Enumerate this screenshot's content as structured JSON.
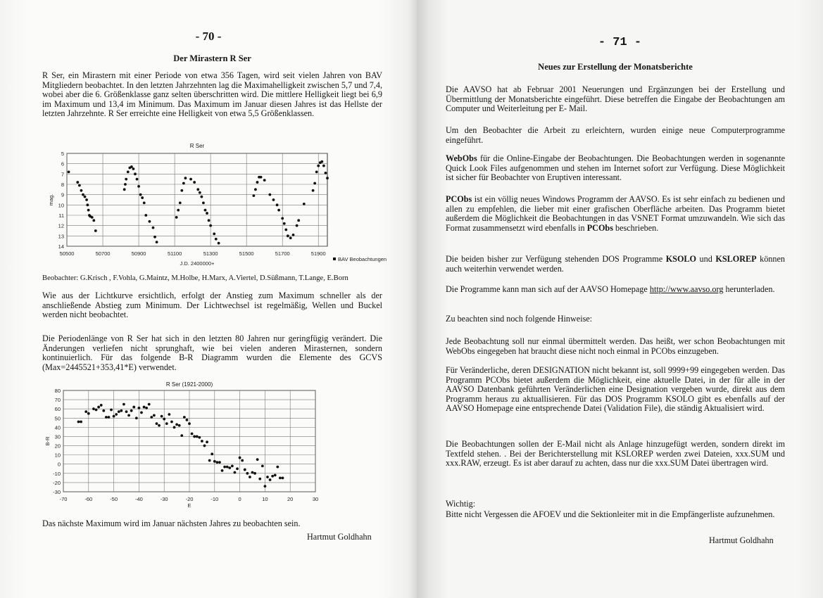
{
  "left": {
    "page_number": "- 70 -",
    "title": "Der Mirastern R Ser",
    "p1": "R Ser, ein Mirastern mit einer Periode von etwa 356 Tagen, wird seit vielen Jahren von BAV Mitgliedern beobachtet. In den letzten Jahrzehnten lag die Maximahelligkeit zwischen 5,7 und 7,4, wobei aber die 6. Größenklasse ganz selten überschritten wird. Die mittlere Helligkeit liegt bei 6,9 im Maximum und 13,4 im Minimum. Das  Maximum im Januar diesen Jahres ist das Hellste der letzten Jahrzehnte. R Ser erreichte eine Helligkeit von etwa 5,5 Größenklassen.",
    "observers": "Beobachter: G.Krisch , F.Vohla, G.Maintz, M.Holbe, H.Marx, A.Viertel, D.Süßmann, T.Lange, E.Born",
    "p2": "Wie aus der Lichtkurve ersichtlich, erfolgt der Anstieg zum Maximum schneller als der anschließende Abstieg zum Minimum. Der Lichtwechsel ist regelmäßig, Wellen und Buckel werden nicht beobachtet.",
    "p3": "Die Periodenlänge von R Ser hat sich in den letzten 80 Jahren nur geringfügig verändert. Die Änderungen verliefen nicht sprunghaft, wie bei vielen anderen Mirasternen, sondern kontinuierlich. Für das folgende B-R Diagramm wurden die Elemente des GCVS (Max=2445521+353,41*E) verwendet.",
    "p4": "Das nächste Maximum wird im Januar nächsten Jahres zu beobachten sein.",
    "author": "Hartmut Goldhahn"
  },
  "right": {
    "page_number": "- 71 -",
    "title": "Neues zur Erstellung der Monatsberichte",
    "p1": "Die AAVSO hat ab Februar 2001 Neuerungen und Ergänzungen bei der Erstellung und Übermittlung der Monatsberichte eingeführt. Diese betreffen die Eingabe der Beobachtungen am Computer und Weiterleitung per E- Mail.",
    "p2": "Um den Beobachter die Arbeit zu erleichtern, wurden einige neue Computerprogramme eingeführt.",
    "p3": [
      "WebObs",
      "  für die Online-Eingabe der Beobachtungen. Die Beobachtungen werden in sogenannte Quick Look Files aufgenommen und stehen im Internet sofort zur Verfügung. Diese Möglichkeit ist sicher für Beobachter von Eruptiven interessant."
    ],
    "p4": [
      "PCObs",
      " ist ein völlig neues Windows Programm der AAVSO. Es ist sehr einfach zu bedienen und allen zu empfehlen, die lieber mit einer grafischen Oberfläche arbeiten. Das Programm bietet außerdem die Möglichkeit die Beobachtungen in das VSNET Format umzuwandeln. Wie sich das Format zusammensetzt wird ebenfalls in ",
      "PCObs",
      " beschrieben."
    ],
    "p5": [
      "Die beiden bisher zur Verfügung stehenden DOS Programme ",
      "KSOLO",
      " und ",
      "KSLOREP",
      " können auch weiterhin verwendet werden."
    ],
    "p6": [
      "Die Programme kann man sich auf der AAVSO Homepage ",
      "http://www.aavso.org",
      " herunterladen."
    ],
    "p7": "Zu beachten sind noch folgende Hinweise:",
    "p8": "Jede Beobachtung soll nur einmal übermittelt werden. Das heißt, wer schon Beobachtungen mit WebObs eingegeben hat braucht diese nicht noch einmal in PCObs einzugeben.",
    "p9": "Für Veränderliche, deren DESIGNATION nicht bekannt ist, soll 9999+99 eingegeben werden. Das Programm PCObs bietet außerdem die Möglichkeit, eine aktuelle Datei, in der für alle in der AAVSO Datenbank geführten Veränderlichen eine Designation vergeben wurde, direkt aus dem Programm heraus zu aktuallisieren. Für das DOS Programm KSOLO gibt es ebenfalls auf der AAVSO Homepage eine entsprechende Datei (Validation File), die ständig Aktualisiert wird.",
    "p10": "Die Beobachtungen sollen der E-Mail nicht als Anlage hinzugefügt werden, sondern direkt im Textfeld stehen. . Bei der Berichterstellung mit KSLOREP werden zwei Dateien,  xxx.SUM und  xxx.RAW, erzeugt. Es ist aber darauf zu achten, dass nur die  xxx.SUM Datei übertragen wird.",
    "p11_label": "Wichtig:",
    "p11": "Bitte nicht Vergessen die AFOEV und die Sektionleiter mit in die Empfängerliste aufzunehmen.",
    "author": "Hartmut Goldhahn"
  },
  "chart_data": [
    {
      "type": "scatter",
      "title": "R Ser",
      "xlabel": "J.D. 2400000+",
      "ylabel": "mag.",
      "xlim": [
        50500,
        51950
      ],
      "ylim": [
        14,
        5
      ],
      "y_inverted": true,
      "grid": true,
      "x_ticks": [
        50500,
        50700,
        50900,
        51100,
        51300,
        51500,
        51700,
        51900
      ],
      "y_ticks": [
        5,
        6,
        7,
        8,
        9,
        10,
        11,
        12,
        13,
        14
      ],
      "legend": "bottom-right",
      "series": [
        {
          "name": "BAV Beobachtungen",
          "x": [
            50510,
            50560,
            50570,
            50580,
            50590,
            50600,
            50610,
            50615,
            50620,
            50625,
            50630,
            50640,
            50650,
            50660,
            50820,
            50825,
            50830,
            50840,
            50850,
            50860,
            50870,
            50880,
            50890,
            50900,
            50910,
            50920,
            50930,
            50940,
            50960,
            50980,
            50990,
            51000,
            51110,
            51120,
            51130,
            51140,
            51150,
            51160,
            51190,
            51210,
            51230,
            51240,
            51250,
            51260,
            51270,
            51280,
            51290,
            51300,
            51320,
            51330,
            51345,
            51540,
            51550,
            51560,
            51570,
            51580,
            51600,
            51630,
            51650,
            51670,
            51680,
            51700,
            51710,
            51720,
            51730,
            51745,
            51760,
            51780,
            51790,
            51820,
            51870,
            51880,
            51890,
            51900,
            51910,
            51920,
            51930,
            51940,
            51950
          ],
          "y": [
            6.8,
            7.8,
            8.1,
            8.6,
            9.0,
            9.2,
            9.5,
            10.0,
            10.5,
            11.0,
            11.1,
            11.2,
            11.5,
            12.5,
            8.5,
            8.0,
            7.5,
            6.8,
            6.4,
            6.3,
            6.5,
            7.0,
            7.5,
            8.2,
            9.0,
            9.3,
            9.8,
            11.0,
            11.6,
            12.2,
            13.1,
            13.6,
            11.2,
            10.5,
            9.8,
            8.6,
            7.9,
            7.4,
            7.5,
            7.8,
            8.5,
            8.8,
            9.2,
            9.8,
            10.5,
            10.8,
            11.5,
            12.0,
            12.8,
            13.3,
            13.7,
            9.1,
            8.5,
            7.8,
            7.3,
            7.3,
            7.6,
            9.0,
            9.5,
            10.0,
            10.5,
            11.3,
            11.8,
            12.4,
            13.0,
            13.2,
            12.9,
            12.0,
            11.5,
            9.9,
            8.6,
            7.9,
            6.8,
            6.2,
            5.9,
            5.8,
            6.2,
            6.9,
            7.4
          ]
        }
      ]
    },
    {
      "type": "scatter",
      "title": "R Ser (1921-2000)",
      "xlabel": "E",
      "ylabel": "B-R",
      "xlim": [
        -70,
        30
      ],
      "ylim": [
        -30,
        80
      ],
      "grid": true,
      "x_ticks": [
        -70,
        -60,
        -50,
        -40,
        -30,
        -20,
        -10,
        0,
        10,
        20,
        30
      ],
      "y_ticks": [
        80,
        70,
        60,
        50,
        40,
        30,
        20,
        10,
        0,
        -10,
        -20,
        -30
      ],
      "series": [
        {
          "x": [
            -64,
            -63,
            -61,
            -60,
            -58,
            -57,
            -56,
            -55,
            -54,
            -53,
            -52,
            -51,
            -50,
            -49,
            -48,
            -47,
            -46,
            -45,
            -44,
            -43,
            -42,
            -41,
            -40,
            -39,
            -38,
            -37,
            -36,
            -35,
            -34,
            -33,
            -32,
            -31,
            -30,
            -29,
            -28,
            -27,
            -26,
            -25,
            -24,
            -23,
            -22,
            -21,
            -20,
            -19,
            -18,
            -17,
            -16,
            -15,
            -14,
            -13,
            -12,
            -11,
            -10,
            -9,
            -8,
            -7,
            -6,
            -5,
            -4,
            -3,
            -2,
            -1,
            0,
            1,
            2,
            3,
            4,
            5,
            6,
            7,
            8,
            9,
            10,
            11,
            12,
            13,
            14,
            15,
            16,
            17
          ],
          "y": [
            46,
            46,
            57,
            55,
            60,
            59,
            62,
            64,
            58,
            51,
            51,
            59,
            52,
            54,
            57,
            58,
            65,
            57,
            53,
            58,
            62,
            50,
            61,
            56,
            62,
            61,
            65,
            51,
            53,
            44,
            42,
            52,
            49,
            44,
            54,
            46,
            40,
            43,
            42,
            31,
            51,
            48,
            44,
            33,
            30,
            30,
            29,
            25,
            20,
            24,
            4,
            11,
            3,
            2,
            2,
            -7,
            -3,
            -3,
            -4,
            -2,
            -9,
            -5,
            7,
            4,
            -6,
            -10,
            -14,
            -9,
            -10,
            5,
            -16,
            -2,
            -24,
            -14,
            -17,
            -13,
            -12,
            -3,
            -15,
            -15
          ]
        }
      ]
    }
  ]
}
